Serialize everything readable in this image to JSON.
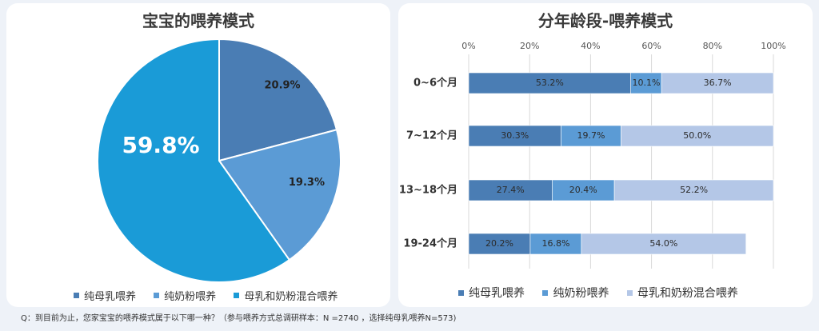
{
  "pie": {
    "title": "宝宝的喂养模式",
    "legend": [
      "纯母乳喂养",
      "纯奶粉喂养",
      "母乳和奶粉混合喂养"
    ]
  },
  "bar": {
    "title": "分年龄段-喂养模式",
    "legend": [
      "纯母乳喂养",
      "纯奶粉喂养",
      "母乳和奶粉混合喂养"
    ]
  },
  "footnote": "Q：到目前为止，您家宝宝的喂养模式属于以下哪一种？（参与喂养方式总调研样本：N =2740 ，选择纯母乳喂养N=573)",
  "colors": {
    "breast": "#4a7db4",
    "formula": "#5b9bd5",
    "mixed": "#1a9bd7",
    "mixed_bar": "#b4c7e7"
  },
  "chart_data": [
    {
      "type": "pie",
      "title": "宝宝的喂养模式",
      "slices": [
        {
          "label": "纯母乳喂养",
          "value": 20.9,
          "display": "20.9%"
        },
        {
          "label": "纯奶粉喂养",
          "value": 19.3,
          "display": "19.3%"
        },
        {
          "label": "母乳和奶粉混合喂养",
          "value": 59.8,
          "display": "59.8%"
        }
      ],
      "legend_position": "bottom"
    },
    {
      "type": "bar",
      "orientation": "horizontal",
      "stacked": true,
      "percent": true,
      "title": "分年龄段-喂养模式",
      "categories": [
        "0~6个月",
        "7~12个月",
        "13~18个月",
        "19-24个月"
      ],
      "series": [
        {
          "name": "纯母乳喂养",
          "values": [
            53.2,
            30.3,
            27.4,
            20.2
          ],
          "labels": [
            "53.2%",
            "30.3%",
            "27.4%",
            "20.2%"
          ]
        },
        {
          "name": "纯奶粉喂养",
          "values": [
            10.1,
            19.7,
            20.4,
            16.8
          ],
          "labels": [
            "10.1%",
            "19.7%",
            "20.4%",
            "16.8%"
          ]
        },
        {
          "name": "母乳和奶粉混合喂养",
          "values": [
            36.7,
            50.0,
            52.2,
            54.0
          ],
          "labels": [
            "36.7%",
            "50.0%",
            "52.2%",
            "54.0%"
          ]
        }
      ],
      "xlim": [
        0,
        100
      ],
      "x_ticks": [
        "0%",
        "20%",
        "40%",
        "60%",
        "80%",
        "100%"
      ],
      "axis_position": "top",
      "grid": true,
      "legend_position": "bottom"
    }
  ]
}
